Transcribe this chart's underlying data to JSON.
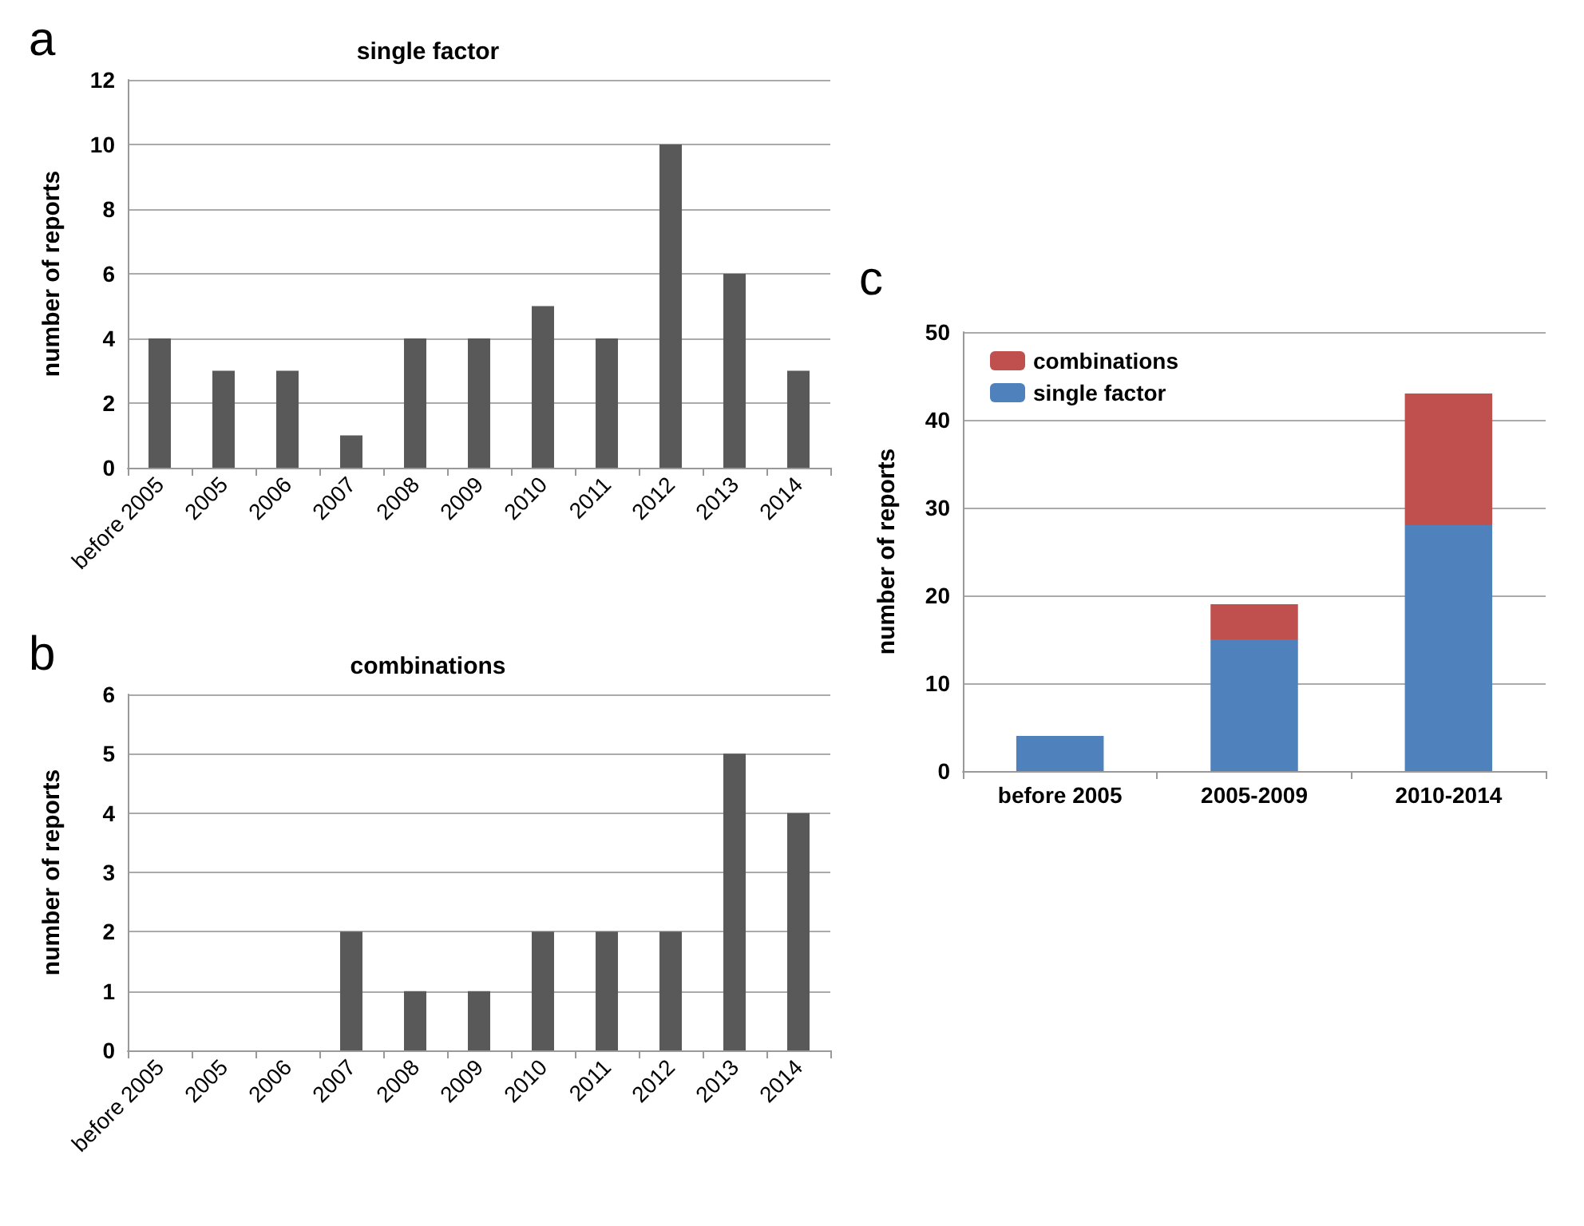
{
  "chart_data": [
    {
      "type": "bar",
      "title": "single factor",
      "ylabel": "number of reports",
      "annotations": [
        "a"
      ],
      "categories": [
        "before 2005",
        "2005",
        "2006",
        "2007",
        "2008",
        "2009",
        "2010",
        "2011",
        "2012",
        "2013",
        "2014"
      ],
      "values": [
        4,
        3,
        3,
        1,
        4,
        4,
        5,
        4,
        10,
        6,
        3
      ],
      "color": "#595959",
      "ylim": [
        0,
        12
      ],
      "yticks": [
        0,
        2,
        4,
        6,
        8,
        10,
        12
      ],
      "grid": "y"
    },
    {
      "type": "bar",
      "title": "combinations",
      "ylabel": "number of reports",
      "annotations": [
        "b"
      ],
      "categories": [
        "before 2005",
        "2005",
        "2006",
        "2007",
        "2008",
        "2009",
        "2010",
        "2011",
        "2012",
        "2013",
        "2014"
      ],
      "values": [
        0,
        0,
        0,
        2,
        1,
        1,
        2,
        2,
        2,
        5,
        4
      ],
      "color": "#595959",
      "ylim": [
        0,
        6
      ],
      "yticks": [
        0,
        1,
        2,
        3,
        4,
        5,
        6
      ],
      "grid": "y"
    },
    {
      "type": "bar",
      "ylabel": "number of reports",
      "annotations": [
        "c"
      ],
      "stacked": true,
      "legend": "top left",
      "categories": [
        "before 2005",
        "2005-2009",
        "2010-2014"
      ],
      "series": [
        {
          "name": "single factor",
          "color": "#4f81bd",
          "values": [
            4,
            15,
            28
          ]
        },
        {
          "name": "combinations",
          "color": "#c0504d",
          "values": [
            0,
            4,
            15
          ]
        }
      ],
      "ylim": [
        0,
        50
      ],
      "yticks": [
        0,
        10,
        20,
        30,
        40,
        50
      ],
      "grid": "y"
    }
  ]
}
